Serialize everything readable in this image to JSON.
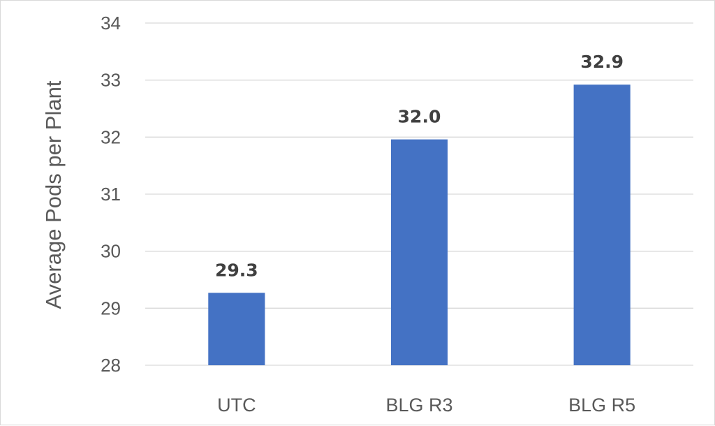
{
  "chart_data": {
    "type": "bar",
    "title": "",
    "xlabel": "",
    "ylabel": "Average Pods per Plant",
    "categories": [
      "UTC",
      "BLG R3",
      "BLG R5"
    ],
    "values": [
      29.27,
      31.96,
      32.92
    ],
    "data_labels": [
      "29.3",
      "32.0",
      "32.9"
    ],
    "ylim": [
      28,
      34
    ],
    "yticks": [
      28,
      29,
      30,
      31,
      32,
      33,
      34
    ],
    "grid": true,
    "legend": "none",
    "bar_color": "#4472c4",
    "grid_color": "#d9d9d9"
  }
}
